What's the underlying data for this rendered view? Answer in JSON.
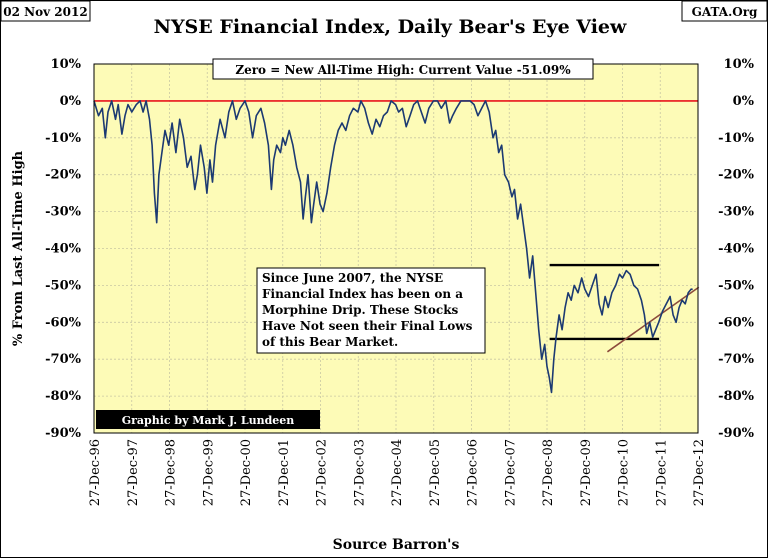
{
  "corner_left": "02 Nov 2012",
  "corner_right": "GATA.Org",
  "credit": "Graphic by Mark J. Lundeen",
  "chart_data": {
    "type": "line",
    "title": "NYSE Financial Index, Daily Bear's Eye View",
    "subtitle": "Zero = New All-Time High: Current Value -51.09%",
    "xlabel": "Source Barron's",
    "ylabel": "% From Last All-Time High",
    "ylim": [
      -90,
      10
    ],
    "yticks": [
      10,
      0,
      -10,
      -20,
      -30,
      -40,
      -50,
      -60,
      -70,
      -80,
      -90
    ],
    "ytick_labels": [
      "10%",
      "0%",
      "-10%",
      "-20%",
      "-30%",
      "-40%",
      "-50%",
      "-60%",
      "-70%",
      "-80%",
      "-90%"
    ],
    "xlim": [
      1996.98,
      2012.98
    ],
    "xticks": [
      "27-Dec-96",
      "27-Dec-97",
      "27-Dec-98",
      "27-Dec-99",
      "27-Dec-00",
      "27-Dec-01",
      "27-Dec-02",
      "27-Dec-03",
      "27-Dec-04",
      "27-Dec-05",
      "27-Dec-06",
      "27-Dec-07",
      "27-Dec-08",
      "27-Dec-09",
      "27-Dec-10",
      "27-Dec-11",
      "27-Dec-12"
    ],
    "grid": true,
    "current_value": -51.09,
    "annotation": {
      "lines": [
        "Since June 2007, the NYSE",
        "Financial Index has been on a",
        "Morphine Drip. These Stocks",
        "Have Not seen their Final Lows",
        "of this Bear Market."
      ]
    },
    "reference_lines": [
      {
        "y": 0,
        "color": "#e8141c"
      },
      {
        "x": [
          2009.05,
          2011.95
        ],
        "y": [
          -44.5,
          -44.5
        ],
        "color": "#000000"
      },
      {
        "x": [
          2009.05,
          2011.95
        ],
        "y": [
          -64.5,
          -64.5
        ],
        "color": "#000000"
      },
      {
        "x": [
          2010.58,
          2013.0
        ],
        "y": [
          -68,
          -50.5
        ],
        "color": "#8b4a3c"
      }
    ],
    "series": [
      {
        "color": "#1c3a72",
        "points": [
          [
            1996.98,
            0
          ],
          [
            1997.1,
            -4
          ],
          [
            1997.2,
            -2
          ],
          [
            1997.28,
            -10
          ],
          [
            1997.35,
            -3
          ],
          [
            1997.45,
            0
          ],
          [
            1997.55,
            -5
          ],
          [
            1997.62,
            -1
          ],
          [
            1997.72,
            -9
          ],
          [
            1997.8,
            -4
          ],
          [
            1997.88,
            -1
          ],
          [
            1997.98,
            -3
          ],
          [
            1998.1,
            -1
          ],
          [
            1998.2,
            0
          ],
          [
            1998.28,
            -3
          ],
          [
            1998.36,
            0
          ],
          [
            1998.45,
            -5
          ],
          [
            1998.52,
            -12
          ],
          [
            1998.58,
            -25
          ],
          [
            1998.64,
            -33
          ],
          [
            1998.7,
            -20
          ],
          [
            1998.78,
            -14
          ],
          [
            1998.86,
            -8
          ],
          [
            1998.96,
            -12
          ],
          [
            1999.05,
            -6
          ],
          [
            1999.15,
            -14
          ],
          [
            1999.25,
            -5
          ],
          [
            1999.35,
            -10
          ],
          [
            1999.45,
            -18
          ],
          [
            1999.55,
            -15
          ],
          [
            1999.65,
            -24
          ],
          [
            1999.72,
            -20
          ],
          [
            1999.8,
            -12
          ],
          [
            1999.9,
            -18
          ],
          [
            1999.97,
            -25
          ],
          [
            2000.05,
            -16
          ],
          [
            2000.12,
            -22
          ],
          [
            2000.2,
            -12
          ],
          [
            2000.32,
            -5
          ],
          [
            2000.45,
            -10
          ],
          [
            2000.55,
            -3
          ],
          [
            2000.65,
            0
          ],
          [
            2000.75,
            -5
          ],
          [
            2000.85,
            -2
          ],
          [
            2000.98,
            0
          ],
          [
            2001.08,
            -3
          ],
          [
            2001.18,
            -10
          ],
          [
            2001.28,
            -4
          ],
          [
            2001.4,
            -2
          ],
          [
            2001.5,
            -6
          ],
          [
            2001.6,
            -12
          ],
          [
            2001.68,
            -24
          ],
          [
            2001.74,
            -16
          ],
          [
            2001.82,
            -12
          ],
          [
            2001.92,
            -14
          ],
          [
            2001.98,
            -10
          ],
          [
            2002.05,
            -12
          ],
          [
            2002.15,
            -8
          ],
          [
            2002.25,
            -12
          ],
          [
            2002.35,
            -18
          ],
          [
            2002.45,
            -22
          ],
          [
            2002.52,
            -32
          ],
          [
            2002.58,
            -26
          ],
          [
            2002.65,
            -20
          ],
          [
            2002.74,
            -33
          ],
          [
            2002.8,
            -28
          ],
          [
            2002.88,
            -22
          ],
          [
            2002.97,
            -28
          ],
          [
            2003.05,
            -30
          ],
          [
            2003.15,
            -25
          ],
          [
            2003.25,
            -18
          ],
          [
            2003.35,
            -12
          ],
          [
            2003.45,
            -8
          ],
          [
            2003.55,
            -6
          ],
          [
            2003.65,
            -8
          ],
          [
            2003.75,
            -4
          ],
          [
            2003.85,
            -2
          ],
          [
            2003.97,
            -3
          ],
          [
            2004.05,
            0
          ],
          [
            2004.15,
            -2
          ],
          [
            2004.25,
            -6
          ],
          [
            2004.35,
            -9
          ],
          [
            2004.45,
            -5
          ],
          [
            2004.55,
            -7
          ],
          [
            2004.65,
            -4
          ],
          [
            2004.75,
            -3
          ],
          [
            2004.85,
            0
          ],
          [
            2004.97,
            -1
          ],
          [
            2005.05,
            -3
          ],
          [
            2005.15,
            -2
          ],
          [
            2005.25,
            -7
          ],
          [
            2005.35,
            -4
          ],
          [
            2005.45,
            -1
          ],
          [
            2005.55,
            0
          ],
          [
            2005.65,
            -3
          ],
          [
            2005.75,
            -6
          ],
          [
            2005.85,
            -2
          ],
          [
            2005.97,
            0
          ],
          [
            2006.08,
            0
          ],
          [
            2006.18,
            -2
          ],
          [
            2006.3,
            0
          ],
          [
            2006.4,
            -6
          ],
          [
            2006.48,
            -4
          ],
          [
            2006.58,
            -2
          ],
          [
            2006.7,
            0
          ],
          [
            2006.82,
            0
          ],
          [
            2006.94,
            0
          ],
          [
            2007.05,
            -1
          ],
          [
            2007.15,
            -4
          ],
          [
            2007.25,
            -2
          ],
          [
            2007.35,
            0
          ],
          [
            2007.45,
            -3
          ],
          [
            2007.55,
            -10
          ],
          [
            2007.62,
            -8
          ],
          [
            2007.7,
            -14
          ],
          [
            2007.78,
            -12
          ],
          [
            2007.86,
            -20
          ],
          [
            2007.96,
            -22
          ],
          [
            2008.05,
            -26
          ],
          [
            2008.12,
            -24
          ],
          [
            2008.2,
            -32
          ],
          [
            2008.28,
            -28
          ],
          [
            2008.36,
            -34
          ],
          [
            2008.44,
            -40
          ],
          [
            2008.52,
            -48
          ],
          [
            2008.6,
            -42
          ],
          [
            2008.68,
            -52
          ],
          [
            2008.76,
            -62
          ],
          [
            2008.84,
            -70
          ],
          [
            2008.92,
            -66
          ],
          [
            2008.98,
            -72
          ],
          [
            2009.04,
            -75
          ],
          [
            2009.1,
            -79
          ],
          [
            2009.16,
            -70
          ],
          [
            2009.22,
            -64
          ],
          [
            2009.3,
            -58
          ],
          [
            2009.38,
            -62
          ],
          [
            2009.46,
            -56
          ],
          [
            2009.54,
            -52
          ],
          [
            2009.62,
            -54
          ],
          [
            2009.7,
            -50
          ],
          [
            2009.8,
            -52
          ],
          [
            2009.9,
            -48
          ],
          [
            2009.98,
            -51
          ],
          [
            2010.08,
            -53
          ],
          [
            2010.18,
            -50
          ],
          [
            2010.28,
            -47
          ],
          [
            2010.36,
            -55
          ],
          [
            2010.44,
            -58
          ],
          [
            2010.52,
            -53
          ],
          [
            2010.6,
            -56
          ],
          [
            2010.7,
            -52
          ],
          [
            2010.8,
            -50
          ],
          [
            2010.9,
            -47
          ],
          [
            2010.98,
            -48
          ],
          [
            2011.08,
            -46
          ],
          [
            2011.18,
            -47
          ],
          [
            2011.28,
            -50
          ],
          [
            2011.38,
            -51
          ],
          [
            2011.48,
            -54
          ],
          [
            2011.56,
            -58
          ],
          [
            2011.62,
            -63
          ],
          [
            2011.7,
            -60
          ],
          [
            2011.78,
            -64
          ],
          [
            2011.86,
            -62
          ],
          [
            2011.94,
            -60
          ],
          [
            2012.04,
            -57
          ],
          [
            2012.14,
            -55
          ],
          [
            2012.24,
            -53
          ],
          [
            2012.32,
            -58
          ],
          [
            2012.4,
            -60
          ],
          [
            2012.48,
            -56
          ],
          [
            2012.56,
            -54
          ],
          [
            2012.64,
            -55
          ],
          [
            2012.72,
            -52
          ],
          [
            2012.8,
            -51
          ],
          [
            2012.84,
            -51.09
          ]
        ]
      }
    ]
  }
}
